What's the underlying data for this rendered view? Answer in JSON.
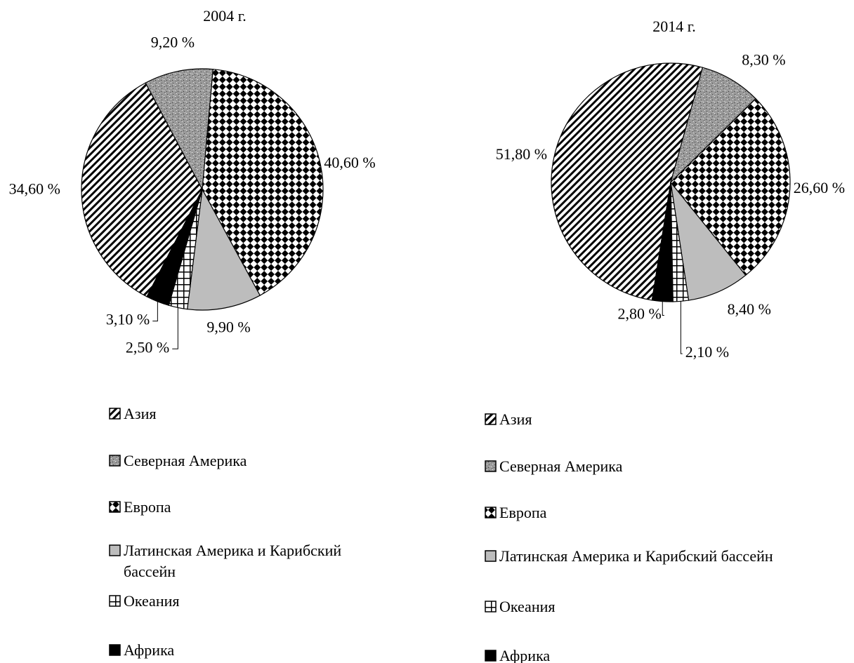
{
  "chart_data": [
    {
      "type": "pie",
      "title": "2004 г.",
      "categories": [
        "Азия",
        "Северная Америка",
        "Европа",
        "Латинская Америка и Карибский бассейн",
        "Океания",
        "Африка"
      ],
      "values": [
        34.6,
        9.2,
        40.6,
        9.9,
        2.5,
        3.1
      ],
      "value_labels": [
        "34,60 %",
        "9,20 %",
        "40,60 %",
        "9,90 %",
        "2,50 %",
        "3,10 %"
      ]
    },
    {
      "type": "pie",
      "title": "2014 г.",
      "categories": [
        "Азия",
        "Северная Америка",
        "Европа",
        "Латинская Америка и Карибский бассейн",
        "Океания",
        "Африка"
      ],
      "values": [
        51.8,
        8.3,
        26.6,
        8.4,
        2.1,
        2.8
      ],
      "value_labels": [
        "51,80 %",
        "8,30 %",
        "26,60 %",
        "8,40 %",
        "2,10 %",
        "2,80 %"
      ]
    }
  ]
}
